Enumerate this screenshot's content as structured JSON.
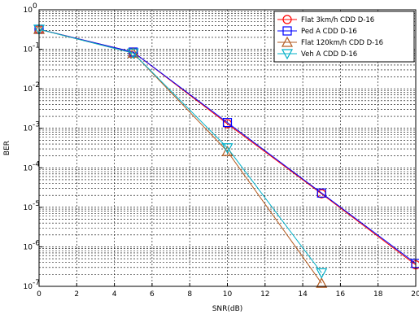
{
  "chart_data": {
    "type": "line",
    "xlabel": "SNR(dB)",
    "ylabel": "BER",
    "xlim": [
      0,
      20
    ],
    "ylim": [
      1e-07,
      1
    ],
    "yscale": "log",
    "grid": true,
    "grid_style": "dashed",
    "legend_position": "top-right",
    "x_ticks": [
      0,
      2,
      4,
      6,
      8,
      10,
      12,
      14,
      16,
      18,
      20
    ],
    "y_ticks": [
      {
        "value": 1e-07,
        "exp": "-7"
      },
      {
        "value": 1e-06,
        "exp": "-6"
      },
      {
        "value": 1e-05,
        "exp": "-5"
      },
      {
        "value": 0.0001,
        "exp": "-4"
      },
      {
        "value": 0.001,
        "exp": "-3"
      },
      {
        "value": 0.01,
        "exp": "-2"
      },
      {
        "value": 0.1,
        "exp": "-1"
      },
      {
        "value": 1,
        "exp": "0"
      }
    ],
    "series": [
      {
        "name": "Flat 3km/h CDD D-16",
        "color": "#ff0000",
        "marker": "circle",
        "x": [
          0,
          5,
          10,
          15,
          20
        ],
        "y": [
          0.32,
          0.085,
          0.0013,
          2.2e-05,
          3.5e-07
        ]
      },
      {
        "name": "Ped A CDD D-16",
        "color": "#0000ff",
        "marker": "square",
        "x": [
          0,
          5,
          10,
          15,
          20
        ],
        "y": [
          0.32,
          0.085,
          0.0014,
          2.3e-05,
          3.8e-07
        ]
      },
      {
        "name": "Flat 120km/h CDD D-16",
        "color": "#b35a1f",
        "marker": "triangle-up",
        "x": [
          0,
          5,
          10,
          15
        ],
        "y": [
          0.32,
          0.08,
          0.00026,
          1.2e-07
        ]
      },
      {
        "name": "Veh A CDD D-16",
        "color": "#00b0c8",
        "marker": "triangle-down",
        "x": [
          0,
          5,
          10,
          15
        ],
        "y": [
          0.32,
          0.08,
          0.00032,
          2.2e-07
        ]
      }
    ]
  }
}
